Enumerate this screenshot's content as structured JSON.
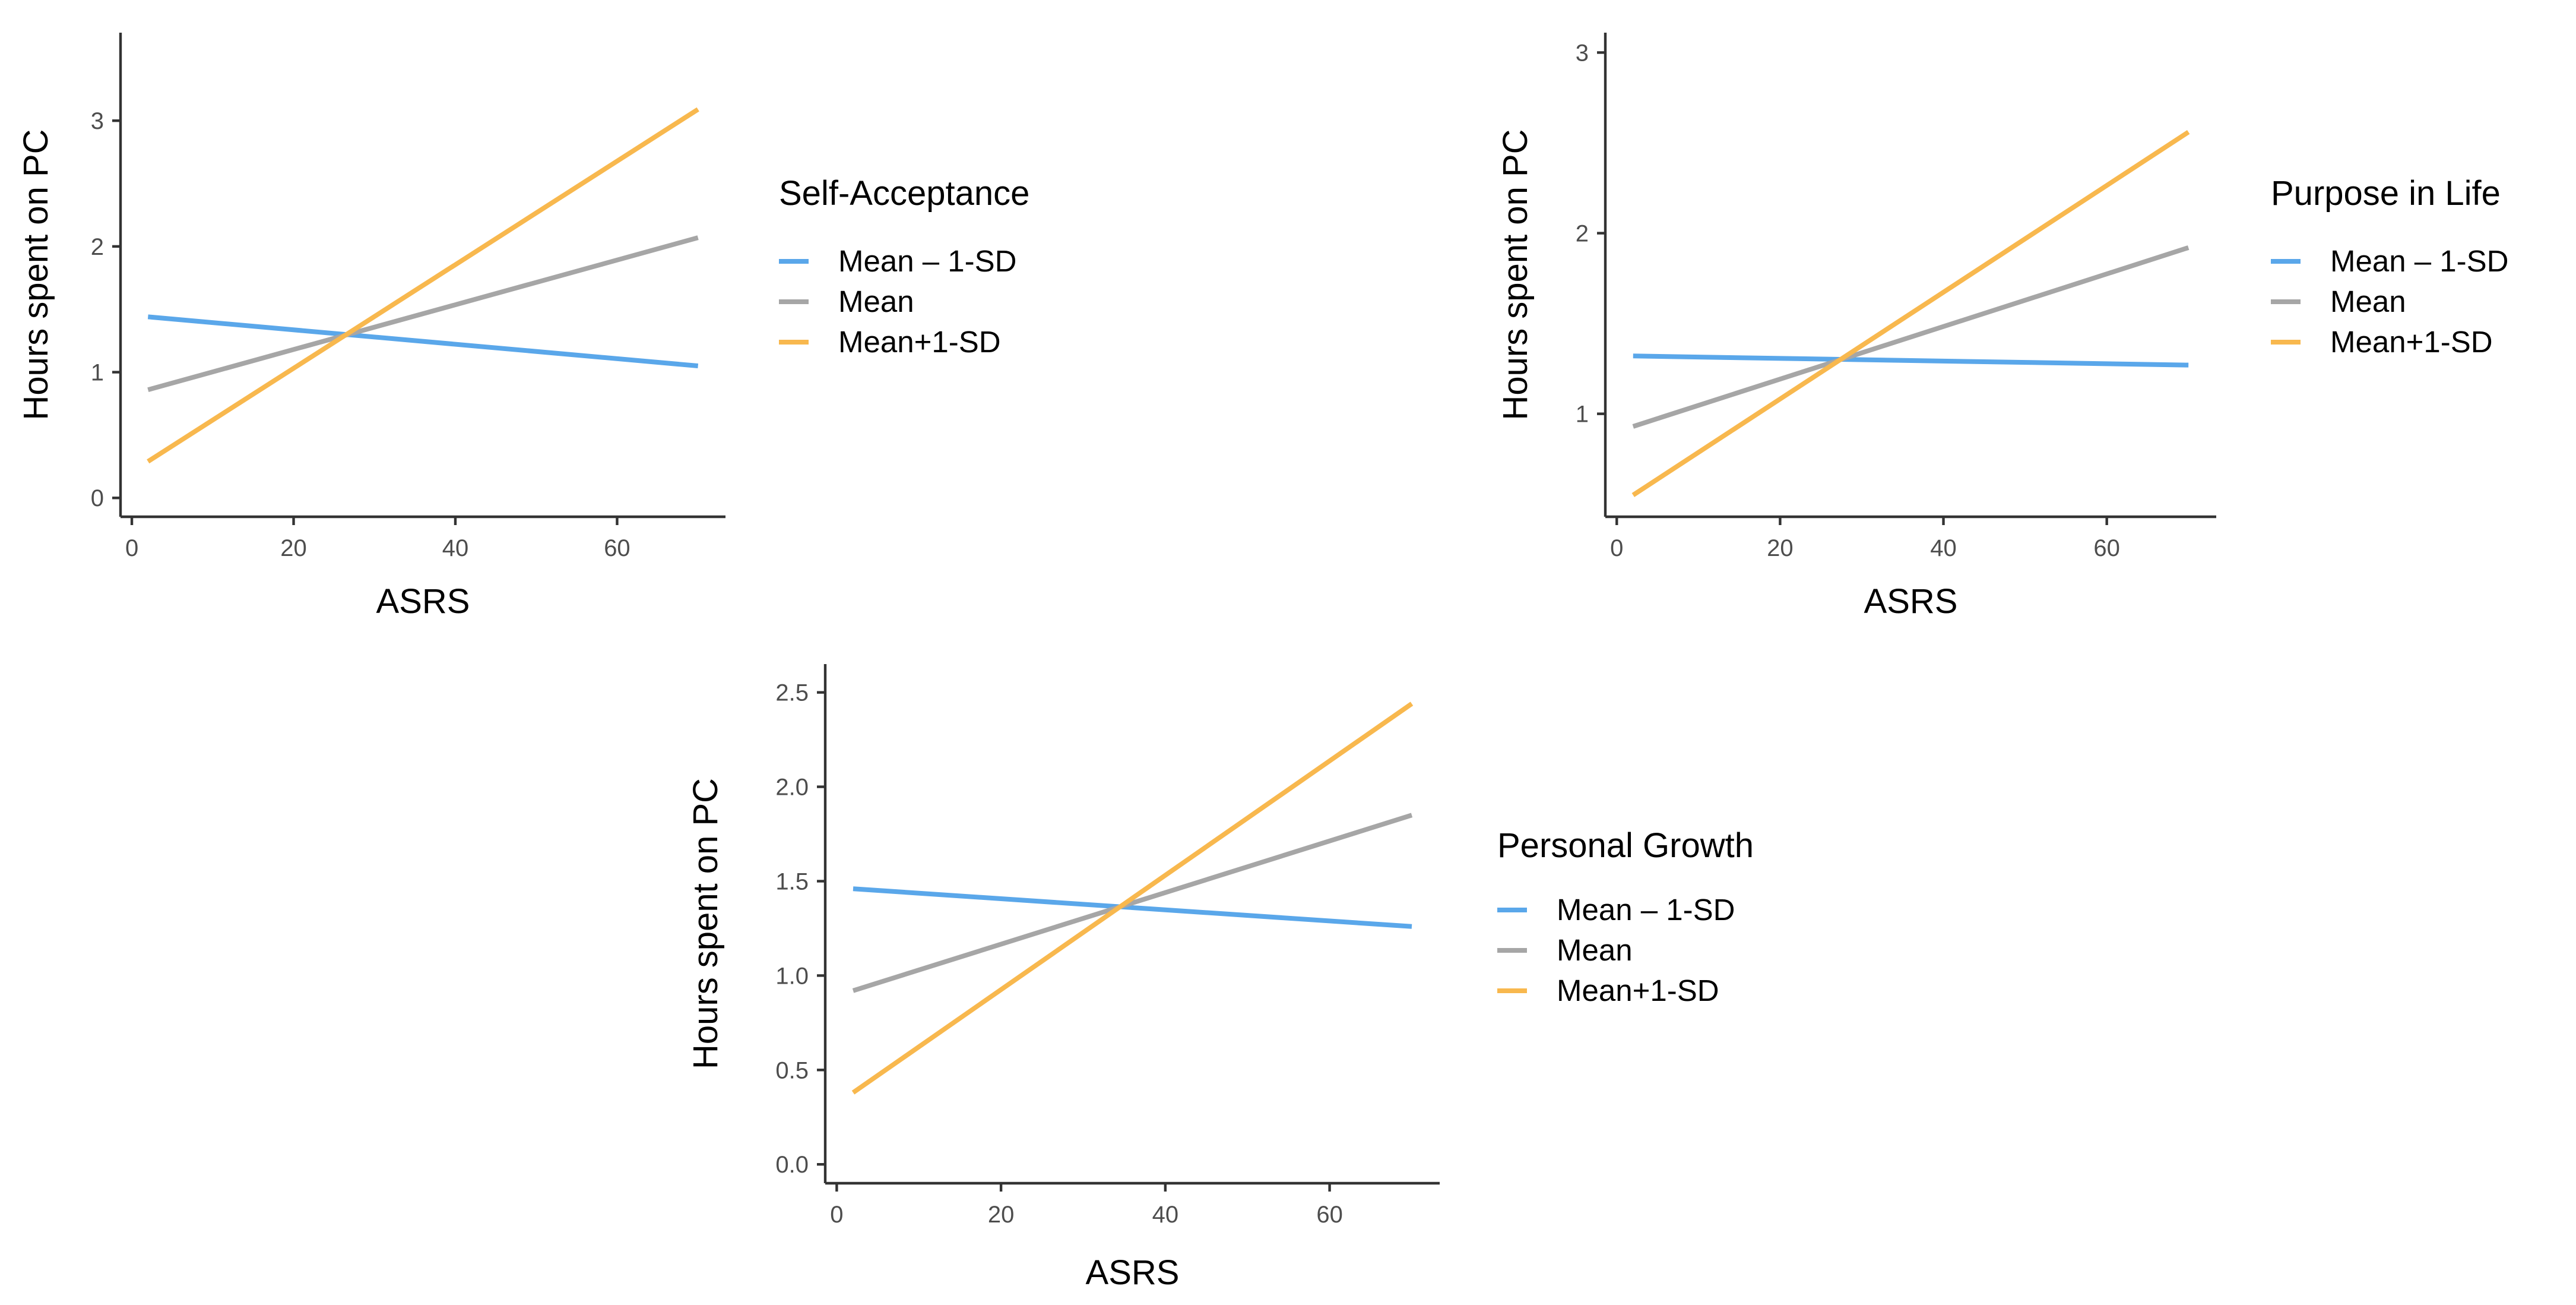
{
  "colors": {
    "low": "#5aa7ea",
    "mean": "#a6a6a6",
    "high": "#f8b84e",
    "axis": "#333333",
    "tick_text": "#4d4d4d"
  },
  "chart_data": [
    {
      "type": "line",
      "title": "",
      "xlabel": "ASRS",
      "ylabel": "Hours spent on PC",
      "xlim": [
        -1.4,
        73.4
      ],
      "ylim": [
        -0.15,
        3.7
      ],
      "xticks": [
        0,
        20,
        40,
        60
      ],
      "xtick_labels": [
        "0",
        "20",
        "40",
        "60"
      ],
      "yticks": [
        0,
        1,
        2,
        3
      ],
      "ytick_labels": [
        "0",
        "1",
        "2",
        "3"
      ],
      "legend_title": "Self-Acceptance",
      "legend_position": "right",
      "series": [
        {
          "name": "Mean – 1-SD",
          "color_key": "low",
          "x": [
            2,
            70
          ],
          "y": [
            1.44,
            1.05
          ]
        },
        {
          "name": "Mean",
          "color_key": "mean",
          "x": [
            2,
            70
          ],
          "y": [
            0.86,
            2.07
          ]
        },
        {
          "name": "Mean+1-SD",
          "color_key": "high",
          "x": [
            2,
            70
          ],
          "y": [
            0.29,
            3.09
          ]
        }
      ]
    },
    {
      "type": "line",
      "title": "",
      "xlabel": "ASRS",
      "ylabel": "Hours spent on PC",
      "xlim": [
        -1.4,
        73.4
      ],
      "ylim": [
        0.43,
        3.11
      ],
      "xticks": [
        0,
        20,
        40,
        60
      ],
      "xtick_labels": [
        "0",
        "20",
        "40",
        "60"
      ],
      "yticks": [
        1,
        2,
        3
      ],
      "ytick_labels": [
        "1",
        "2",
        "3"
      ],
      "legend_title": "Purpose in Life",
      "legend_position": "right",
      "series": [
        {
          "name": "Mean – 1-SD",
          "color_key": "low",
          "x": [
            2,
            70
          ],
          "y": [
            1.32,
            1.27
          ]
        },
        {
          "name": "Mean",
          "color_key": "mean",
          "x": [
            2,
            70
          ],
          "y": [
            0.93,
            1.92
          ]
        },
        {
          "name": "Mean+1-SD",
          "color_key": "high",
          "x": [
            2,
            70
          ],
          "y": [
            0.55,
            2.56
          ]
        }
      ]
    },
    {
      "type": "line",
      "title": "",
      "xlabel": "ASRS",
      "ylabel": "Hours spent on PC",
      "xlim": [
        -1.4,
        73.4
      ],
      "ylim": [
        -0.1,
        2.65
      ],
      "xticks": [
        0,
        20,
        40,
        60
      ],
      "xtick_labels": [
        "0",
        "20",
        "40",
        "60"
      ],
      "yticks": [
        0,
        0.5,
        1,
        1.5,
        2,
        2.5
      ],
      "ytick_labels": [
        "0.0",
        "0.5",
        "1.0",
        "1.5",
        "2.0",
        "2.5"
      ],
      "legend_title": "Personal Growth",
      "legend_position": "right",
      "series": [
        {
          "name": "Mean – 1-SD",
          "color_key": "low",
          "x": [
            2,
            70
          ],
          "y": [
            1.46,
            1.26
          ]
        },
        {
          "name": "Mean",
          "color_key": "mean",
          "x": [
            2,
            70
          ],
          "y": [
            0.92,
            1.85
          ]
        },
        {
          "name": "Mean+1-SD",
          "color_key": "high",
          "x": [
            2,
            70
          ],
          "y": [
            0.38,
            2.44
          ]
        }
      ]
    }
  ]
}
